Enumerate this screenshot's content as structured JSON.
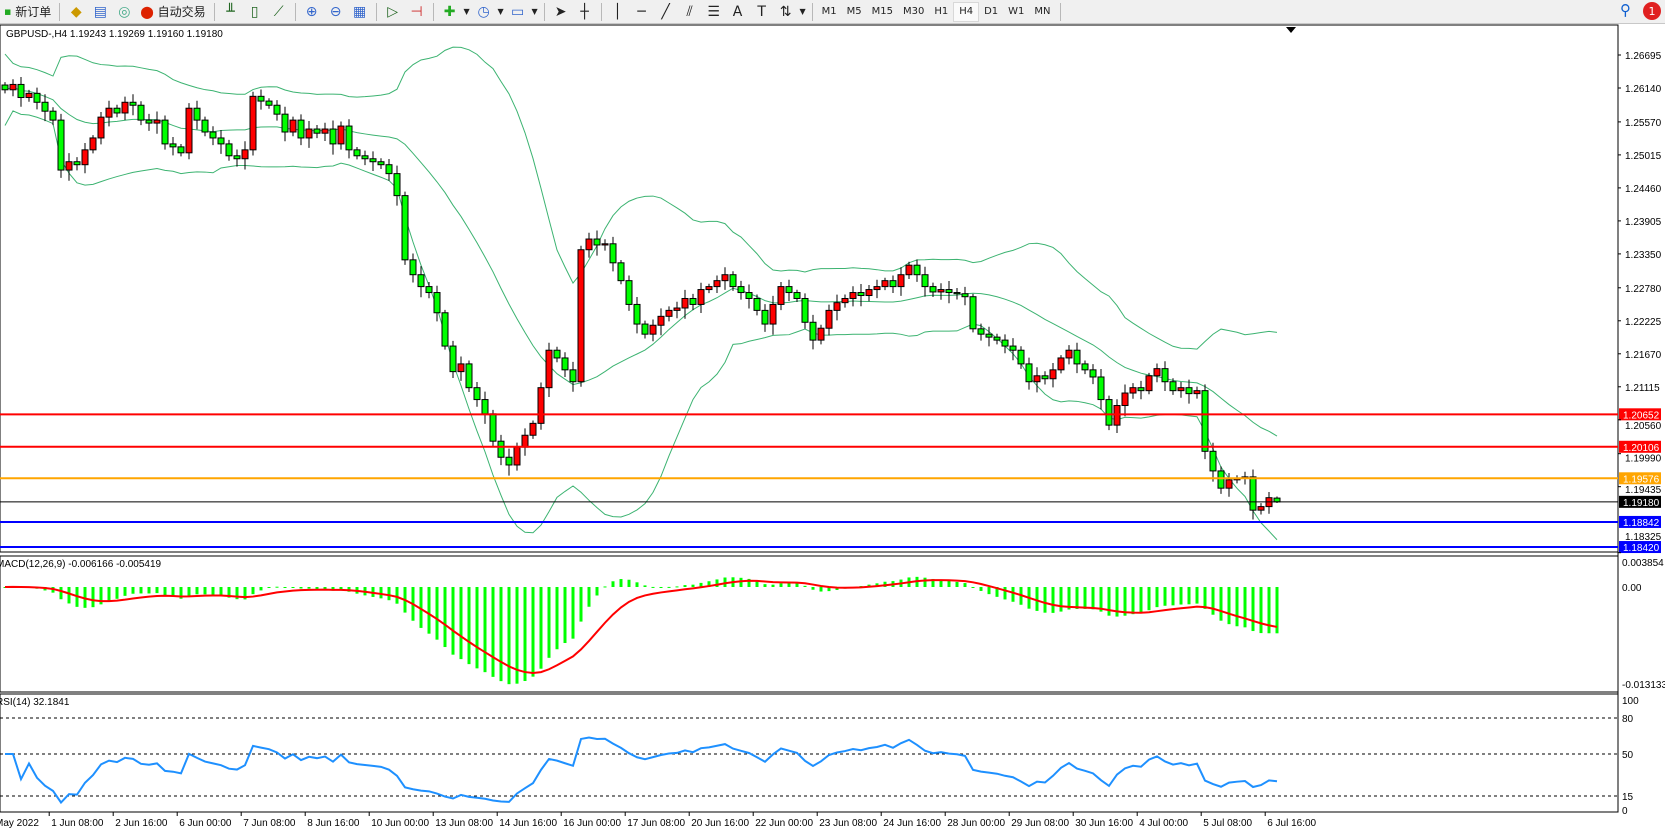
{
  "toolbar": {
    "new_order": "新订单",
    "auto_trading": "自动交易",
    "timeframes": [
      "M1",
      "M5",
      "M15",
      "M30",
      "H1",
      "H4",
      "D1",
      "W1",
      "MN"
    ],
    "active_timeframe": "H4",
    "notification_count": "1",
    "icons": [
      "new-order-icon",
      "market-watch-icon",
      "navigator-icon",
      "signals-icon",
      "auto-trading-icon",
      "bar-chart-icon",
      "candlestick-icon",
      "line-chart-icon",
      "zoom-in-icon",
      "zoom-out-icon",
      "tile-windows-icon",
      "autoscroll-icon",
      "chart-shift-icon",
      "new-chart-icon",
      "periodicity-icon",
      "templates-icon",
      "cursor-icon",
      "crosshair-icon",
      "vertical-line-icon",
      "horizontal-line-icon",
      "trendline-icon",
      "equidistant-channel-icon",
      "fibonacci-icon",
      "text-icon",
      "text-label-icon",
      "arrows-icon",
      "search-icon",
      "notification-icon"
    ]
  },
  "chart": {
    "header": "GBPUSD-,H4  1.19243 1.19269 1.19160 1.19180",
    "price_ticks": [
      "1.26695",
      "1.26140",
      "1.25570",
      "1.25015",
      "1.24460",
      "1.23905",
      "1.23350",
      "1.22780",
      "1.22225",
      "1.21670",
      "1.21115",
      "1.20560",
      "1.19990",
      "1.19435",
      "1.18325"
    ],
    "time_labels": [
      "May 2022",
      "1 Jun 08:00",
      "2 Jun 16:00",
      "6 Jun 00:00",
      "7 Jun 08:00",
      "8 Jun 16:00",
      "10 Jun 00:00",
      "13 Jun 08:00",
      "14 Jun 16:00",
      "16 Jun 00:00",
      "17 Jun 08:00",
      "20 Jun 16:00",
      "22 Jun 00:00",
      "23 Jun 08:00",
      "24 Jun 16:00",
      "28 Jun 00:00",
      "29 Jun 08:00",
      "30 Jun 16:00",
      "4 Jul 00:00",
      "5 Jul 08:00",
      "6 Jul 16:00"
    ],
    "hlines": [
      {
        "price": "1.20652",
        "color": "#ff0000"
      },
      {
        "price": "1.20106",
        "color": "#ff0000"
      },
      {
        "price": "1.19576",
        "color": "#ffa500"
      },
      {
        "price": "1.19180",
        "color": "#000000"
      },
      {
        "price": "1.18842",
        "color": "#0000ff"
      },
      {
        "price": "1.18420",
        "color": "#0000ff"
      }
    ],
    "colors": {
      "bull": "#ff0000",
      "bear": "#00ff00",
      "bands": "#3cb371",
      "macd_hist": "#00ff00",
      "macd_signal": "#ff0000",
      "rsi": "#1e90ff"
    },
    "macd": {
      "label": "MACD(12,26,9) -0.006166 -0.005419",
      "ticks": [
        "0.003854",
        "0.00",
        "-0.013133"
      ]
    },
    "rsi": {
      "label": "RSI(14) 32.1841",
      "ticks": [
        "100",
        "80",
        "50",
        "15",
        "0"
      ],
      "levels": [
        80,
        50,
        15
      ]
    }
  },
  "chart_data": {
    "type": "candlestick",
    "symbol": "GBPUSD-",
    "timeframe": "H4",
    "ylim": [
      1.18325,
      1.26695
    ],
    "closes": [
      1.2611,
      1.262,
      1.2598,
      1.2605,
      1.259,
      1.2575,
      1.256,
      1.2476,
      1.249,
      1.2485,
      1.251,
      1.253,
      1.2565,
      1.258,
      1.2572,
      1.259,
      1.2585,
      1.256,
      1.2555,
      1.256,
      1.252,
      1.2515,
      1.2505,
      1.258,
      1.256,
      1.254,
      1.253,
      1.252,
      1.25,
      1.2495,
      1.251,
      1.26,
      1.2592,
      1.2585,
      1.257,
      1.254,
      1.256,
      1.253,
      1.2545,
      1.2538,
      1.2545,
      1.252,
      1.255,
      1.251,
      1.25,
      1.2495,
      1.249,
      1.2485,
      1.247,
      1.2433,
      1.2325,
      1.23,
      1.228,
      1.227,
      1.2236,
      1.218,
      1.2137,
      1.215,
      1.211,
      1.209,
      1.2066,
      1.202,
      1.1993,
      1.198,
      1.201,
      1.203,
      1.205,
      1.211,
      1.2173,
      1.216,
      1.214,
      1.212,
      1.2342,
      1.236,
      1.235,
      1.2352,
      1.232,
      1.229,
      1.225,
      1.2217,
      1.22,
      1.2215,
      1.223,
      1.224,
      1.2244,
      1.226,
      1.225,
      1.2275,
      1.228,
      1.229,
      1.23,
      1.228,
      1.227,
      1.226,
      1.224,
      1.2217,
      1.225,
      1.228,
      1.227,
      1.226,
      1.222,
      1.219,
      1.221,
      1.224,
      1.2253,
      1.226,
      1.227,
      1.2265,
      1.2275,
      1.228,
      1.229,
      1.228,
      1.23,
      1.2316,
      1.23,
      1.228,
      1.2271,
      1.2275,
      1.227,
      1.2268,
      1.2263,
      1.2209,
      1.22,
      1.2195,
      1.219,
      1.218,
      1.2173,
      1.215,
      1.212,
      1.213,
      1.2125,
      1.214,
      1.216,
      1.2173,
      1.215,
      1.214,
      1.2128,
      1.209,
      1.2047,
      1.208,
      1.2101,
      1.211,
      1.2105,
      1.213,
      1.2142,
      1.212,
      1.2105,
      1.211,
      1.21,
      1.2105,
      1.2003,
      1.197,
      1.1941,
      1.1955,
      1.1958,
      1.196,
      1.1904,
      1.191,
      1.1925,
      1.1918
    ],
    "last_bar": {
      "open": 1.19243,
      "high": 1.19269,
      "low": 1.1916,
      "close": 1.1918
    },
    "indicators": [
      "Bollinger Bands",
      "MACD(12,26,9)",
      "RSI(14)"
    ]
  }
}
